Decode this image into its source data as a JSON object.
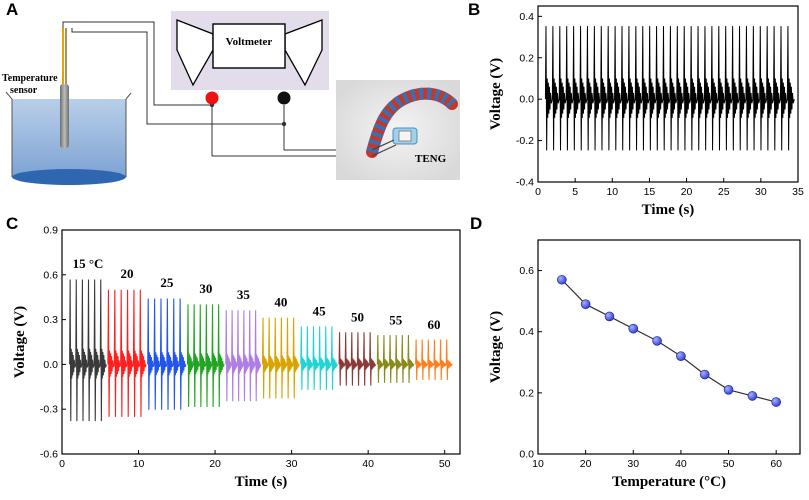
{
  "panels": {
    "a": {
      "letter": "A"
    },
    "b": {
      "letter": "B"
    },
    "c": {
      "letter": "C"
    },
    "d": {
      "letter": "D"
    }
  },
  "schematic": {
    "voltmeter_label": "Voltmeter",
    "sensor_label_line1": "Temperature",
    "sensor_label_line2": "sensor",
    "teng_label": "TENG",
    "colors": {
      "voltmeter_box": "#e3dcea",
      "water": "#8fb2d9",
      "water_bottom": "#2f66b0",
      "probe": "#8a8a8a",
      "probe_wire": "#e2a600",
      "red_terminal": "#ee1111",
      "black_terminal": "#111111",
      "teng_red": "#c0392b",
      "teng_blue": "#3b6fb3"
    }
  },
  "chart_data": [
    {
      "id": "B",
      "type": "line",
      "title": "",
      "xlabel": "Time (s)",
      "ylabel": "Voltage (V)",
      "xlim": [
        0,
        35
      ],
      "ylim": [
        -0.4,
        0.45
      ],
      "xticks": [
        0,
        5,
        10,
        15,
        20,
        25,
        30,
        35
      ],
      "yticks": [
        -0.4,
        -0.2,
        0.0,
        0.2,
        0.4
      ],
      "ytick_labels": [
        "-0.4",
        "-0.2",
        "0.0",
        "0.2",
        "0.4"
      ],
      "signal": {
        "t_start": 1.0,
        "t_end": 34.5,
        "cycles": 36,
        "peak_max": 0.36,
        "peak_min": -0.26,
        "minor_amp": 0.1,
        "color": "#000000"
      }
    },
    {
      "id": "C",
      "type": "line",
      "title": "",
      "xlabel": "Time (s)",
      "ylabel": "Voltage (V)",
      "xlim": [
        0,
        52
      ],
      "ylim": [
        -0.6,
        0.9
      ],
      "xticks": [
        0,
        10,
        20,
        30,
        40,
        50
      ],
      "yticks": [
        -0.6,
        -0.3,
        0.0,
        0.3,
        0.6,
        0.9
      ],
      "ytick_labels": [
        "-0.6",
        "-0.3",
        "0.0",
        "0.3",
        "0.6",
        "0.9"
      ],
      "series": [
        {
          "name": "15 °C",
          "label": "15 °C",
          "t0": 1.0,
          "t1": 5.8,
          "vmax": 0.58,
          "vmin": -0.4,
          "color": "#3a3a3a"
        },
        {
          "name": "20",
          "label": "20",
          "t0": 6.0,
          "t1": 11.0,
          "vmax": 0.51,
          "vmin": -0.37,
          "color": "#ff1f1f"
        },
        {
          "name": "25",
          "label": "25",
          "t0": 11.2,
          "t1": 16.2,
          "vmax": 0.45,
          "vmin": -0.32,
          "color": "#2255ee"
        },
        {
          "name": "30",
          "label": "30",
          "t0": 16.4,
          "t1": 21.2,
          "vmax": 0.41,
          "vmin": -0.3,
          "color": "#22a522"
        },
        {
          "name": "35",
          "label": "35",
          "t0": 21.4,
          "t1": 26.0,
          "vmax": 0.37,
          "vmin": -0.26,
          "color": "#b07de6"
        },
        {
          "name": "40",
          "label": "40",
          "t0": 26.2,
          "t1": 31.0,
          "vmax": 0.32,
          "vmin": -0.24,
          "color": "#d9a300"
        },
        {
          "name": "45",
          "label": "45",
          "t0": 31.2,
          "t1": 36.0,
          "vmax": 0.26,
          "vmin": -0.18,
          "color": "#22d3d3"
        },
        {
          "name": "50",
          "label": "50",
          "t0": 36.2,
          "t1": 41.0,
          "vmax": 0.22,
          "vmin": -0.15,
          "color": "#8b3a3a"
        },
        {
          "name": "55",
          "label": "55",
          "t0": 41.2,
          "t1": 46.0,
          "vmax": 0.2,
          "vmin": -0.13,
          "color": "#8a8a1a"
        },
        {
          "name": "60",
          "label": "60",
          "t0": 46.2,
          "t1": 51.0,
          "vmax": 0.17,
          "vmin": -0.11,
          "color": "#ff7f1f"
        }
      ]
    },
    {
      "id": "D",
      "type": "scatter",
      "title": "",
      "xlabel": "Temperature (°C)",
      "ylabel": "Voltage (V)",
      "xlim": [
        10,
        65
      ],
      "ylim": [
        0.0,
        0.7
      ],
      "xticks": [
        10,
        20,
        30,
        40,
        50,
        60
      ],
      "yticks": [
        0.0,
        0.2,
        0.4,
        0.6
      ],
      "ytick_labels": [
        "0.0",
        "0.2",
        "0.4",
        "0.6"
      ],
      "x": [
        15,
        20,
        25,
        30,
        35,
        40,
        45,
        50,
        55,
        60
      ],
      "y": [
        0.57,
        0.49,
        0.45,
        0.41,
        0.37,
        0.32,
        0.26,
        0.21,
        0.19,
        0.17
      ],
      "marker_color": "#2a38d8",
      "line_color": "#333333"
    }
  ]
}
